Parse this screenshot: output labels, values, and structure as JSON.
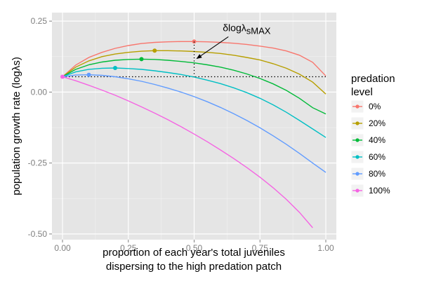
{
  "chart_data": {
    "type": "line",
    "xlabel_line1": "proportion of each year's total juveniles",
    "xlabel_line2": "dispersing to the high predation patch",
    "ylabel": "population growth rate (logλs)",
    "xlim": [
      -0.04,
      1.04
    ],
    "ylim": [
      -0.52,
      0.28
    ],
    "x_ticks": [
      0.0,
      0.25,
      0.5,
      0.75,
      1.0
    ],
    "x_tick_labels": [
      "0.00",
      "0.25",
      "0.50",
      "0.75",
      "1.00"
    ],
    "y_ticks": [
      -0.5,
      -0.25,
      0.0,
      0.25
    ],
    "y_tick_labels": [
      "-0.50",
      "-0.25",
      "0.00",
      "0.25"
    ],
    "grid": true,
    "legend": {
      "title_line1": "predation",
      "title_line2": "level",
      "placement": "right"
    },
    "baseline_y": 0.054,
    "annotation": {
      "text": "δlogλ",
      "subscript": "sMAX",
      "x": 0.5,
      "y_top": 0.178,
      "y_bottom": 0.054,
      "arrow_from": [
        0.63,
        0.195
      ],
      "arrow_to": [
        0.51,
        0.118
      ]
    },
    "series": [
      {
        "name": "0%",
        "color": "#F8766D",
        "x": [
          0,
          0.05,
          0.1,
          0.15,
          0.2,
          0.25,
          0.3,
          0.35,
          0.4,
          0.45,
          0.5,
          0.55,
          0.6,
          0.65,
          0.7,
          0.75,
          0.8,
          0.85,
          0.9,
          0.95,
          1.0
        ],
        "y": [
          0.054,
          0.095,
          0.122,
          0.14,
          0.154,
          0.164,
          0.171,
          0.175,
          0.177,
          0.178,
          0.178,
          0.177,
          0.175,
          0.172,
          0.168,
          0.162,
          0.155,
          0.145,
          0.13,
          0.105,
          0.057
        ],
        "max_point": [
          0.5,
          0.178
        ]
      },
      {
        "name": "20%",
        "color": "#B79F00",
        "x": [
          0,
          0.05,
          0.1,
          0.15,
          0.2,
          0.25,
          0.3,
          0.35,
          0.4,
          0.45,
          0.5,
          0.55,
          0.6,
          0.65,
          0.7,
          0.75,
          0.8,
          0.85,
          0.9,
          0.95,
          1.0
        ],
        "y": [
          0.054,
          0.088,
          0.11,
          0.125,
          0.134,
          0.14,
          0.144,
          0.146,
          0.146,
          0.145,
          0.143,
          0.14,
          0.136,
          0.13,
          0.122,
          0.113,
          0.1,
          0.084,
          0.063,
          0.035,
          -0.007
        ],
        "max_point": [
          0.35,
          0.146
        ]
      },
      {
        "name": "40%",
        "color": "#00BA38",
        "x": [
          0,
          0.05,
          0.1,
          0.15,
          0.2,
          0.25,
          0.3,
          0.35,
          0.4,
          0.45,
          0.5,
          0.55,
          0.6,
          0.65,
          0.7,
          0.75,
          0.8,
          0.85,
          0.9,
          0.95,
          1.0
        ],
        "y": [
          0.054,
          0.08,
          0.096,
          0.106,
          0.112,
          0.115,
          0.116,
          0.115,
          0.112,
          0.108,
          0.103,
          0.096,
          0.088,
          0.077,
          0.064,
          0.048,
          0.029,
          0.006,
          -0.022,
          -0.055,
          -0.077
        ],
        "max_point": [
          0.3,
          0.116
        ]
      },
      {
        "name": "60%",
        "color": "#00BFC4",
        "x": [
          0,
          0.05,
          0.1,
          0.15,
          0.2,
          0.25,
          0.3,
          0.35,
          0.4,
          0.45,
          0.5,
          0.55,
          0.6,
          0.65,
          0.7,
          0.75,
          0.8,
          0.85,
          0.9,
          0.95,
          1.0
        ],
        "y": [
          0.054,
          0.071,
          0.08,
          0.084,
          0.085,
          0.083,
          0.08,
          0.075,
          0.069,
          0.062,
          0.053,
          0.042,
          0.03,
          0.015,
          -0.002,
          -0.022,
          -0.045,
          -0.071,
          -0.1,
          -0.13,
          -0.16
        ],
        "max_point": [
          0.2,
          0.085
        ]
      },
      {
        "name": "80%",
        "color": "#619CFF",
        "x": [
          0,
          0.05,
          0.1,
          0.15,
          0.2,
          0.25,
          0.3,
          0.35,
          0.4,
          0.45,
          0.5,
          0.55,
          0.6,
          0.65,
          0.7,
          0.75,
          0.8,
          0.85,
          0.9,
          0.95,
          1.0
        ],
        "y": [
          0.054,
          0.06,
          0.061,
          0.059,
          0.054,
          0.047,
          0.038,
          0.027,
          0.014,
          0.0,
          -0.016,
          -0.034,
          -0.054,
          -0.076,
          -0.1,
          -0.126,
          -0.154,
          -0.184,
          -0.216,
          -0.25,
          -0.283
        ],
        "max_point": [
          0.1,
          0.061
        ]
      },
      {
        "name": "100%",
        "color": "#F564E3",
        "x": [
          0,
          0.05,
          0.1,
          0.15,
          0.2,
          0.25,
          0.3,
          0.35,
          0.4,
          0.45,
          0.5,
          0.55,
          0.6,
          0.65,
          0.7,
          0.75,
          0.8,
          0.85,
          0.9,
          0.95
        ],
        "y": [
          0.054,
          0.04,
          0.024,
          0.007,
          -0.011,
          -0.031,
          -0.052,
          -0.074,
          -0.097,
          -0.122,
          -0.148,
          -0.175,
          -0.204,
          -0.234,
          -0.266,
          -0.3,
          -0.337,
          -0.378,
          -0.424,
          -0.478
        ],
        "max_point": [
          0,
          0.054
        ]
      }
    ]
  }
}
